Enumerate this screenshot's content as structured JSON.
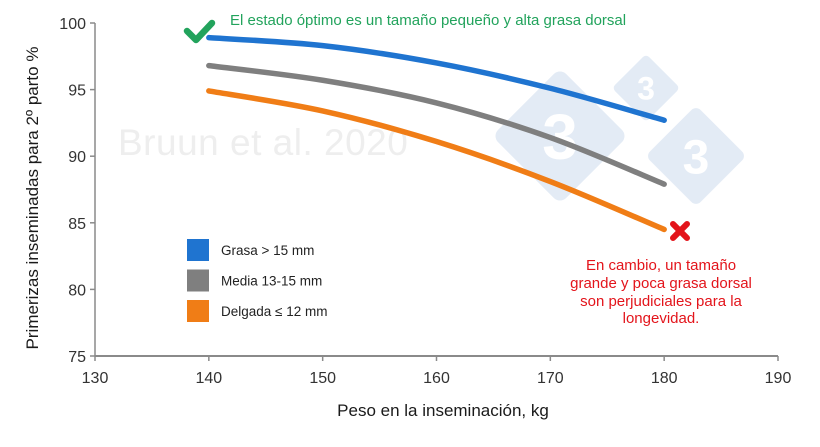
{
  "chart_data": {
    "type": "line",
    "title": "",
    "xlabel": "Peso en la inseminación, kg",
    "ylabel": "Primerizas inseminadas para 2º parto %",
    "xlim": [
      130,
      190
    ],
    "ylim": [
      75,
      100
    ],
    "xticks": [
      130,
      140,
      150,
      160,
      170,
      180,
      190
    ],
    "yticks": [
      75,
      80,
      85,
      90,
      95,
      100
    ],
    "grid": false,
    "legend_position": "lower-left inside plot",
    "x": [
      140,
      150,
      160,
      170,
      180
    ],
    "series": [
      {
        "name": "Grasa > 15 mm",
        "color": "#1f74d0",
        "values": [
          98.9,
          98.3,
          97.0,
          95.1,
          92.7
        ]
      },
      {
        "name": "Media 13-15 mm",
        "color": "#7f7f7f",
        "values": [
          96.8,
          95.7,
          94.0,
          91.4,
          87.9
        ]
      },
      {
        "name": "Delgada ≤ 12 mm",
        "color": "#f07d16",
        "values": [
          94.9,
          93.4,
          91.1,
          88.1,
          84.5
        ]
      }
    ],
    "annotations": [
      {
        "id": "good",
        "text": "El estado óptimo es un tamaño pequeño y alta grasa dorsal",
        "color": "#22a35c",
        "icon": "check-mark-icon",
        "at": [
          139,
          99.2
        ]
      },
      {
        "id": "bad",
        "lines": [
          "En cambio, un tamaño",
          "grande y poca grasa dorsal",
          "son perjudiciales para la",
          "longevidad."
        ],
        "color": "#e3141b",
        "icon": "cross-mark-icon",
        "at": [
          181.5,
          84.3
        ]
      }
    ],
    "watermark": "Bruun et al. 2020",
    "logo_watermark": "333",
    "logo_color": "#e3ebf5"
  }
}
